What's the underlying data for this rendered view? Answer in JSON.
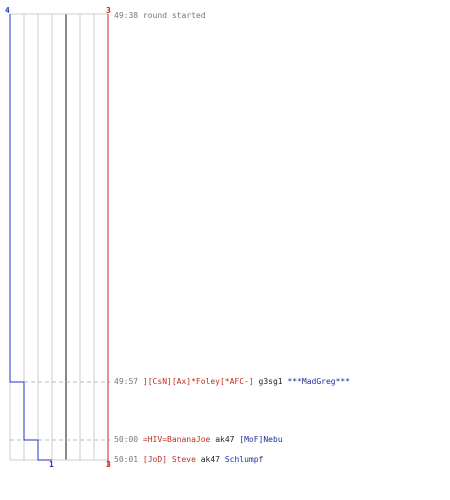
{
  "colors": {
    "team_red": "#cc2222",
    "team_blue": "#2233cc",
    "grid": "#cccccc",
    "grid_center": "#888888",
    "dashed": "#bbbbbb",
    "time_text": "#777777"
  },
  "score": {
    "blue_start": "4",
    "red_start": "3",
    "blue_end": "1",
    "red_end": "3"
  },
  "events": [
    {
      "time": "49:38",
      "text": "round started"
    },
    {
      "time": "49:57",
      "killer": "][CsN][Ax]*Foley[*AFC-]",
      "weapon": "g3sg1",
      "victim": "***MadGreg***"
    },
    {
      "time": "50:00",
      "killer": "=HIV=BananaJoe",
      "weapon": "ak47",
      "victim": "[MoF]Nebu"
    },
    {
      "time": "50:01",
      "killer": "[JoD] Steve",
      "weapon": "ak47",
      "victim": "Schlumpf"
    }
  ]
}
